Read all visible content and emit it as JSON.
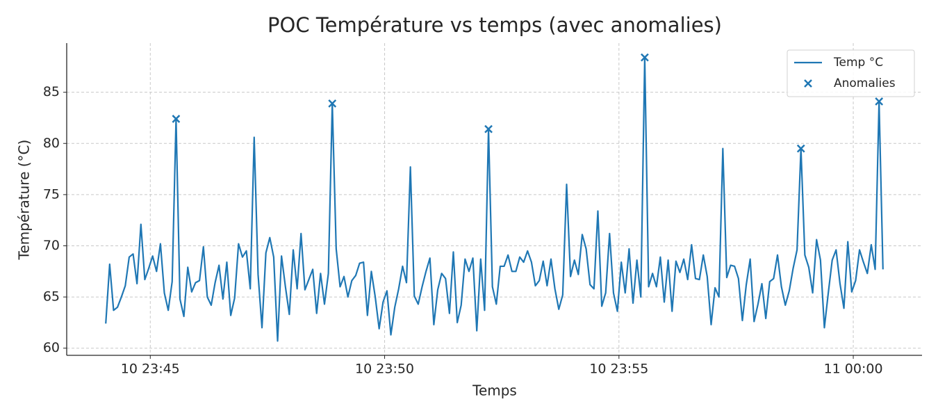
{
  "chart_data": {
    "type": "line",
    "title": "POC Température vs temps (avec anomalies)",
    "x_label": "Temps",
    "y_label": "Température (°C)",
    "xlim": [
      "10 23:43:13",
      "11 00:01:28"
    ],
    "xticks": [
      "10 23:45",
      "10 23:50",
      "10 23:55",
      "11 00:00"
    ],
    "ylim": [
      59.3,
      89.8
    ],
    "yticks": [
      60,
      65,
      70,
      75,
      80,
      85
    ],
    "grid": true,
    "legend": "upper right",
    "series": [
      {
        "name": "Temp °C",
        "color": "#1f77b4",
        "x": [
          "10 23:44:03",
          "10 23:44:08",
          "10 23:44:13",
          "10 23:44:18",
          "10 23:44:23",
          "10 23:44:28",
          "10 23:44:33",
          "10 23:44:38",
          "10 23:44:43",
          "10 23:44:48",
          "10 23:44:53",
          "10 23:44:58",
          "10 23:45:03",
          "10 23:45:08",
          "10 23:45:13",
          "10 23:45:18",
          "10 23:45:23",
          "10 23:45:28",
          "10 23:45:33",
          "10 23:45:38",
          "10 23:45:43",
          "10 23:45:48",
          "10 23:45:53",
          "10 23:45:58",
          "10 23:46:03",
          "10 23:46:08",
          "10 23:46:13",
          "10 23:46:18",
          "10 23:46:23",
          "10 23:46:28",
          "10 23:46:33",
          "10 23:46:38",
          "10 23:46:43",
          "10 23:46:48",
          "10 23:46:53",
          "10 23:46:58",
          "10 23:47:03",
          "10 23:47:08",
          "10 23:47:13",
          "10 23:47:18",
          "10 23:47:23",
          "10 23:47:28",
          "10 23:47:33",
          "10 23:47:38",
          "10 23:47:43",
          "10 23:47:48",
          "10 23:47:53",
          "10 23:47:58",
          "10 23:48:03",
          "10 23:48:08",
          "10 23:48:13",
          "10 23:48:18",
          "10 23:48:23",
          "10 23:48:28",
          "10 23:48:33",
          "10 23:48:38",
          "10 23:48:43",
          "10 23:48:48",
          "10 23:48:53",
          "10 23:48:58",
          "10 23:49:03",
          "10 23:49:08",
          "10 23:49:13",
          "10 23:49:18",
          "10 23:49:23",
          "10 23:49:28",
          "10 23:49:33",
          "10 23:49:38",
          "10 23:49:43",
          "10 23:49:48",
          "10 23:49:53",
          "10 23:49:58",
          "10 23:50:03",
          "10 23:50:08",
          "10 23:50:13",
          "10 23:50:18",
          "10 23:50:23",
          "10 23:50:28",
          "10 23:50:33",
          "10 23:50:38",
          "10 23:50:43",
          "10 23:50:48",
          "10 23:50:53",
          "10 23:50:58",
          "10 23:51:03",
          "10 23:51:08",
          "10 23:51:13",
          "10 23:51:18",
          "10 23:51:23",
          "10 23:51:28",
          "10 23:51:33",
          "10 23:51:38",
          "10 23:51:43",
          "10 23:51:48",
          "10 23:51:53",
          "10 23:51:58",
          "10 23:52:03",
          "10 23:52:08",
          "10 23:52:13",
          "10 23:52:18",
          "10 23:52:23",
          "10 23:52:28",
          "10 23:52:33",
          "10 23:52:38",
          "10 23:52:43",
          "10 23:52:48",
          "10 23:52:53",
          "10 23:52:58",
          "10 23:53:03",
          "10 23:53:08",
          "10 23:53:13",
          "10 23:53:18",
          "10 23:53:23",
          "10 23:53:28",
          "10 23:53:33",
          "10 23:53:38",
          "10 23:53:43",
          "10 23:53:48",
          "10 23:53:53",
          "10 23:53:58",
          "10 23:54:03",
          "10 23:54:08",
          "10 23:54:13",
          "10 23:54:18",
          "10 23:54:23",
          "10 23:54:28",
          "10 23:54:33",
          "10 23:54:38",
          "10 23:54:43",
          "10 23:54:48",
          "10 23:54:53",
          "10 23:54:58",
          "10 23:55:03",
          "10 23:55:08",
          "10 23:55:13",
          "10 23:55:18",
          "10 23:55:23",
          "10 23:55:28",
          "10 23:55:33",
          "10 23:55:38",
          "10 23:55:43",
          "10 23:55:48",
          "10 23:55:53",
          "10 23:55:58",
          "10 23:56:03",
          "10 23:56:08",
          "10 23:56:13",
          "10 23:56:18",
          "10 23:56:23",
          "10 23:56:28",
          "10 23:56:33",
          "10 23:56:38",
          "10 23:56:43",
          "10 23:56:48",
          "10 23:56:53",
          "10 23:56:58",
          "10 23:57:03",
          "10 23:57:08",
          "10 23:57:13",
          "10 23:57:18",
          "10 23:57:23",
          "10 23:57:28",
          "10 23:57:33",
          "10 23:57:38",
          "10 23:57:43",
          "10 23:57:48",
          "10 23:57:53",
          "10 23:57:58",
          "10 23:58:03",
          "10 23:58:08",
          "10 23:58:13",
          "10 23:58:18",
          "10 23:58:23",
          "10 23:58:28",
          "10 23:58:33",
          "10 23:58:38",
          "10 23:58:43",
          "10 23:58:48",
          "10 23:58:53",
          "10 23:58:58",
          "10 23:59:03",
          "10 23:59:08",
          "10 23:59:13",
          "10 23:59:18",
          "10 23:59:23",
          "10 23:59:28",
          "10 23:59:33",
          "10 23:59:38",
          "10 23:59:43",
          "10 23:59:48",
          "10 23:59:53",
          "10 23:59:58",
          "11 00:00:03",
          "11 00:00:08",
          "11 00:00:13",
          "11 00:00:18",
          "11 00:00:23",
          "11 00:00:28",
          "11 00:00:33",
          "11 00:00:38"
        ],
        "values": [
          62.4,
          68.2,
          63.7,
          64.0,
          65.0,
          66.1,
          68.9,
          69.2,
          66.3,
          72.1,
          66.7,
          67.8,
          69.0,
          67.5,
          70.2,
          65.4,
          63.7,
          66.5,
          82.4,
          64.8,
          63.1,
          67.9,
          65.5,
          66.4,
          66.6,
          69.9,
          65.0,
          64.2,
          66.4,
          68.1,
          64.8,
          68.4,
          63.2,
          64.9,
          70.2,
          68.9,
          69.5,
          65.8,
          80.6,
          67.2,
          62.0,
          69.3,
          70.8,
          68.9,
          60.7,
          69.0,
          66.0,
          63.3,
          69.6,
          65.8,
          71.2,
          65.7,
          66.7,
          67.7,
          63.4,
          67.3,
          64.3,
          67.3,
          83.9,
          69.7,
          66.0,
          67.0,
          65.0,
          66.6,
          67.1,
          68.3,
          68.4,
          63.2,
          67.5,
          65.0,
          61.9,
          64.5,
          65.6,
          61.3,
          64.0,
          65.8,
          68.0,
          66.4,
          77.7,
          65.1,
          64.3,
          66.0,
          67.5,
          68.8,
          62.3,
          65.7,
          67.3,
          66.8,
          63.4,
          69.4,
          62.5,
          64.2,
          68.7,
          67.5,
          68.8,
          61.7,
          68.7,
          63.7,
          81.4,
          66.0,
          64.3,
          68.0,
          68.0,
          69.1,
          67.5,
          67.5,
          68.9,
          68.4,
          69.5,
          68.4,
          66.1,
          66.6,
          68.5,
          66.1,
          68.7,
          65.8,
          63.8,
          65.2,
          76.0,
          67.0,
          68.6,
          67.2,
          71.1,
          69.7,
          66.2,
          65.8,
          73.4,
          64.1,
          65.4,
          71.2,
          65.4,
          63.6,
          68.4,
          65.4,
          69.7,
          64.4,
          68.6,
          65.0,
          88.4,
          66.0,
          67.3,
          66.0,
          68.9,
          64.5,
          68.6,
          63.6,
          68.5,
          67.4,
          68.7,
          66.7,
          70.1,
          66.8,
          66.7,
          69.1,
          67.0,
          62.3,
          65.9,
          65.0,
          79.5,
          66.9,
          68.1,
          68.0,
          66.8,
          62.7,
          66.2,
          68.7,
          62.6,
          64.3,
          66.3,
          62.9,
          66.5,
          66.8,
          69.1,
          66.0,
          64.2,
          65.6,
          67.8,
          69.6,
          79.5,
          69.1,
          67.9,
          65.4,
          70.6,
          68.6,
          62.0,
          65.4,
          68.6,
          69.6,
          66.3,
          63.9,
          70.4,
          65.5,
          66.6,
          69.6,
          68.4,
          67.3,
          70.1,
          67.7,
          84.1,
          67.7
        ]
      },
      {
        "name": "Anomalies",
        "color": "#1f77b4",
        "marker": "x",
        "x": [
          "10 23:45:33",
          "10 23:48:53",
          "10 23:52:13",
          "10 23:55:33",
          "10 23:58:53",
          "11 00:00:33"
        ],
        "values": [
          82.4,
          83.9,
          81.4,
          88.4,
          79.5,
          84.1
        ]
      }
    ]
  }
}
